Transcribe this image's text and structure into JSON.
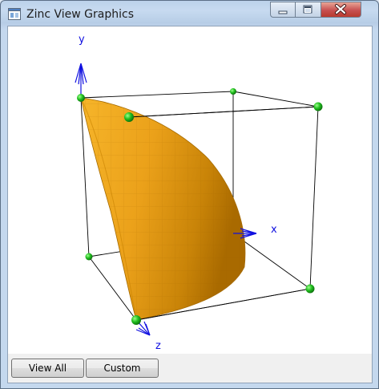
{
  "window": {
    "title": "Zinc View Graphics",
    "controls": [
      "minimize",
      "maximize",
      "close"
    ]
  },
  "scene": {
    "axis_labels": {
      "x": "x",
      "y": "y",
      "z": "z"
    },
    "colors": {
      "surface": "#e89a10",
      "surface_shade": "#b86e00",
      "node": "#22c020",
      "axis": "#1010e0",
      "edges": "#000000"
    }
  },
  "buttons": {
    "view_all": "View All",
    "custom": "Custom"
  }
}
